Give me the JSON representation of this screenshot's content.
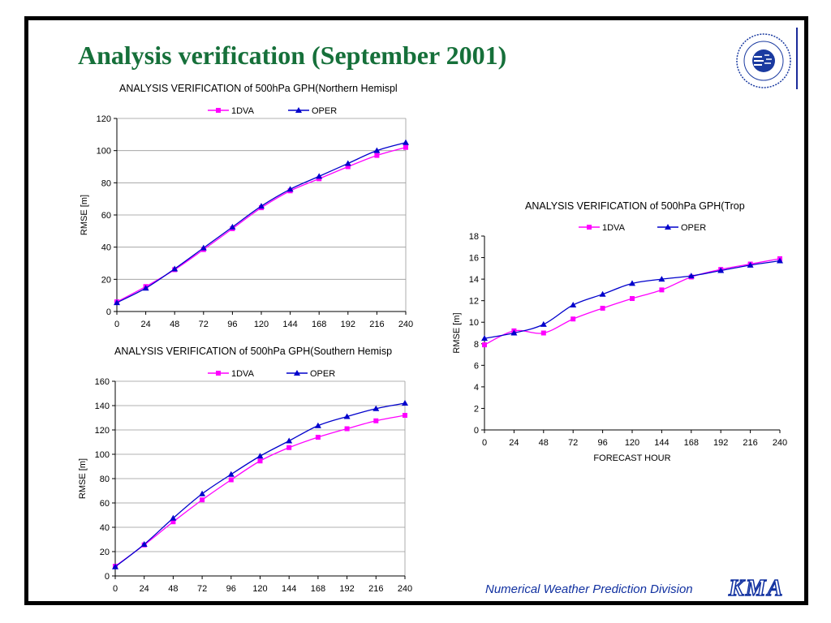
{
  "page": {
    "title": "Analysis verification (September 2001)",
    "footer_text": "Numerical Weather Prediction Division",
    "footer_logo": "KMA",
    "logo_icon": "kma-seal-icon"
  },
  "colors": {
    "title": "#16703a",
    "series_1dva": "#ff00ff",
    "series_oper": "#0000cc",
    "footer": "#1030a0"
  },
  "chart_data": [
    {
      "type": "line",
      "title": "ANALYSIS VERIFICATION of 500hPa GPH(Northern Hemispl",
      "xlabel": "",
      "ylabel": "RMSE [m]",
      "x": [
        0,
        24,
        48,
        72,
        96,
        120,
        144,
        168,
        192,
        216,
        240
      ],
      "ylim": [
        0,
        120
      ],
      "yticks": [
        0,
        20,
        40,
        60,
        80,
        100,
        120
      ],
      "grid": true,
      "legend": "top",
      "series": [
        {
          "name": "1DVA",
          "marker": "square",
          "color": "#ff00ff",
          "values": [
            6,
            15.5,
            26,
            38.5,
            51.5,
            64.5,
            75,
            82.5,
            90,
            97,
            102
          ]
        },
        {
          "name": "OPER",
          "marker": "triangle",
          "color": "#0000cc",
          "values": [
            5.5,
            14.5,
            26.5,
            39.5,
            52.5,
            65.5,
            76,
            84,
            92,
            100,
            105
          ]
        }
      ]
    },
    {
      "type": "line",
      "title": "ANALYSIS VERIFICATION  of 500hPa GPH(Southern Hemisp",
      "xlabel": "",
      "ylabel": "RMSE [m]",
      "x": [
        0,
        24,
        48,
        72,
        96,
        120,
        144,
        168,
        192,
        216,
        240
      ],
      "ylim": [
        0,
        160
      ],
      "yticks": [
        0,
        20,
        40,
        60,
        80,
        100,
        120,
        140,
        160
      ],
      "grid": true,
      "legend": "top",
      "series": [
        {
          "name": "1DVA",
          "marker": "square",
          "color": "#ff00ff",
          "values": [
            8,
            25.5,
            44.5,
            62.5,
            79,
            94.5,
            105.5,
            114,
            121,
            127.5,
            132
          ]
        },
        {
          "name": "OPER",
          "marker": "triangle",
          "color": "#0000cc",
          "values": [
            7.5,
            26,
            47.5,
            67.5,
            83.5,
            98.5,
            111,
            123.5,
            131,
            137.5,
            142
          ]
        }
      ]
    },
    {
      "type": "line",
      "title": "ANALYSIS VERIFICATION of 500hPa GPH(Trop",
      "xlabel": "FORECAST HOUR",
      "ylabel": "RMSE [m]",
      "x": [
        0,
        24,
        48,
        72,
        96,
        120,
        144,
        168,
        192,
        216,
        240
      ],
      "ylim": [
        0,
        18
      ],
      "yticks": [
        0,
        2,
        4,
        6,
        8,
        10,
        12,
        14,
        16,
        18
      ],
      "grid": false,
      "legend": "top",
      "series": [
        {
          "name": "1DVA",
          "marker": "square",
          "color": "#ff00ff",
          "values": [
            7.9,
            9.2,
            9.0,
            10.3,
            11.3,
            12.2,
            13.0,
            14.2,
            14.9,
            15.4,
            15.9
          ]
        },
        {
          "name": "OPER",
          "marker": "triangle",
          "color": "#0000cc",
          "values": [
            8.5,
            9.0,
            9.8,
            11.6,
            12.6,
            13.6,
            14.0,
            14.3,
            14.8,
            15.3,
            15.7
          ]
        }
      ]
    }
  ]
}
